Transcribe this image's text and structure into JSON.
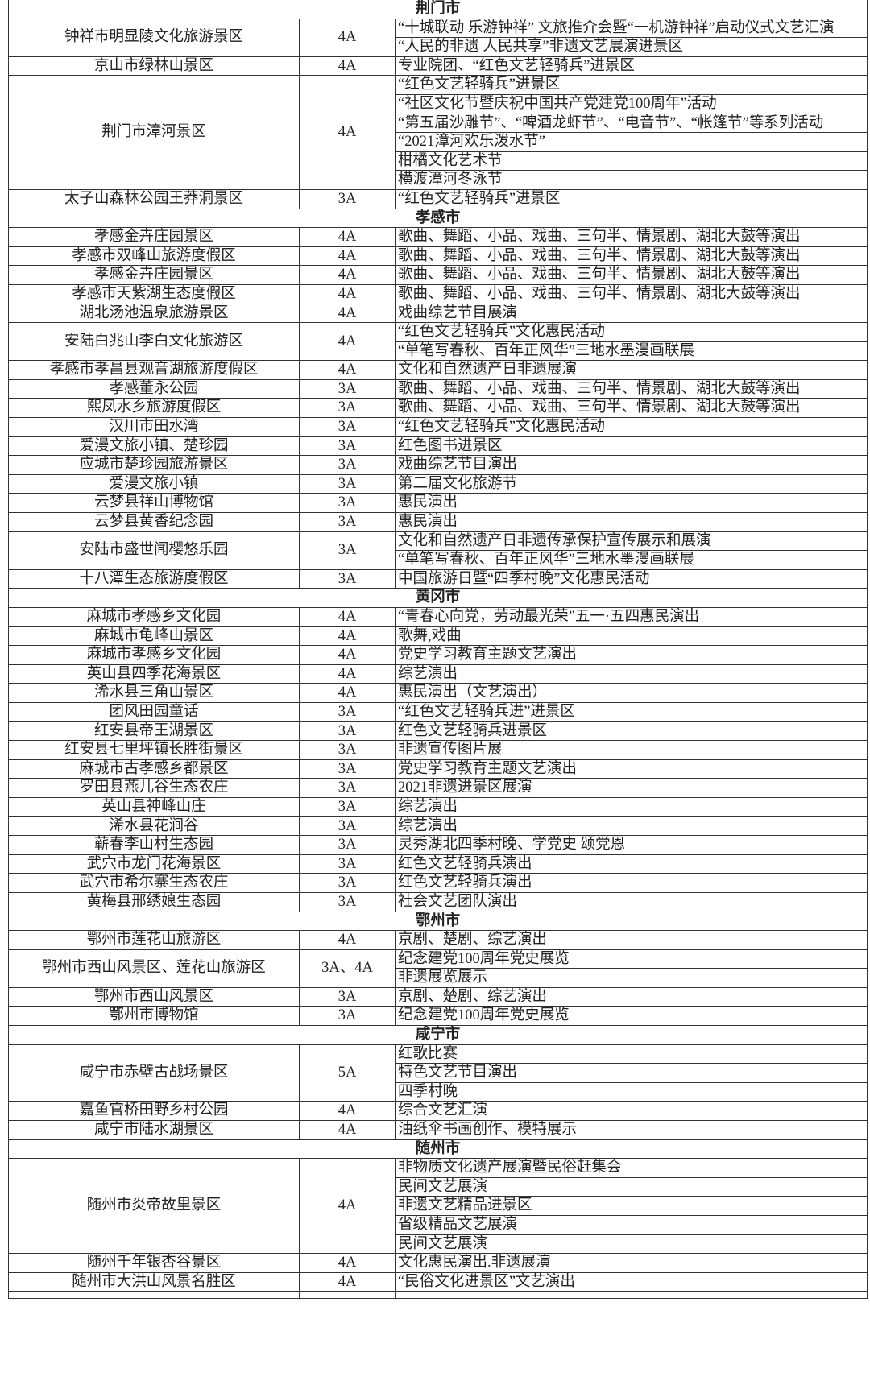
{
  "sections": [
    {
      "city": "荆门市",
      "rows": [
        {
          "name": "钟祥市明显陵文化旅游景区",
          "level": "4A",
          "activities": [
            "“十城联动 乐游钟祥” 文旅推介会暨“一机游钟祥”启动仪式文艺汇演",
            "“人民的非遗 人民共享”非遗文艺展演进景区"
          ]
        },
        {
          "name": "京山市绿林山景区",
          "level": "4A",
          "activities": [
            "专业院团、“红色文艺轻骑兵”进景区"
          ]
        },
        {
          "name": "荆门市漳河景区",
          "level": "4A",
          "activities": [
            "“红色文艺轻骑兵”进景区",
            "“社区文化节暨庆祝中国共产党建党100周年”活动",
            "“第五届沙雕节”、“啤酒龙虾节”、“电音节”、“帐篷节”等系列活动",
            "“2021漳河欢乐泼水节”",
            "柑橘文化艺术节",
            "横渡漳河冬泳节"
          ]
        },
        {
          "name": "太子山森林公园王莽洞景区",
          "level": "3A",
          "activities": [
            "“红色文艺轻骑兵”进景区"
          ]
        }
      ]
    },
    {
      "city": "孝感市",
      "rows": [
        {
          "name": "孝感金卉庄园景区",
          "level": "4A",
          "activities": [
            "歌曲、舞蹈、小品、戏曲、三句半、情景剧、湖北大鼓等演出"
          ]
        },
        {
          "name": "孝感市双峰山旅游度假区",
          "level": "4A",
          "activities": [
            "歌曲、舞蹈、小品、戏曲、三句半、情景剧、湖北大鼓等演出"
          ]
        },
        {
          "name": "孝感金卉庄园景区",
          "level": "4A",
          "activities": [
            "歌曲、舞蹈、小品、戏曲、三句半、情景剧、湖北大鼓等演出"
          ]
        },
        {
          "name": "孝感市天紫湖生态度假区",
          "level": "4A",
          "activities": [
            "歌曲、舞蹈、小品、戏曲、三句半、情景剧、湖北大鼓等演出"
          ]
        },
        {
          "name": "湖北汤池温泉旅游景区",
          "level": "4A",
          "activities": [
            "戏曲综艺节目展演"
          ]
        },
        {
          "name": "安陆白兆山李白文化旅游区",
          "level": "4A",
          "activities": [
            "“红色文艺轻骑兵”文化惠民活动",
            "“单笔写春秋、百年正风华”三地水墨漫画联展"
          ]
        },
        {
          "name": "孝感市孝昌县观音湖旅游度假区",
          "level": "4A",
          "activities": [
            "文化和自然遗产日非遗展演"
          ]
        },
        {
          "name": "孝感董永公园",
          "level": "3A",
          "activities": [
            "歌曲、舞蹈、小品、戏曲、三句半、情景剧、湖北大鼓等演出"
          ]
        },
        {
          "name": "熙凤水乡旅游度假区",
          "level": "3A",
          "activities": [
            "歌曲、舞蹈、小品、戏曲、三句半、情景剧、湖北大鼓等演出"
          ]
        },
        {
          "name": "汉川市田水湾",
          "level": "3A",
          "activities": [
            "“红色文艺轻骑兵”文化惠民活动"
          ]
        },
        {
          "name": "爱漫文旅小镇、楚珍园",
          "level": "3A",
          "activities": [
            "红色图书进景区"
          ]
        },
        {
          "name": "应城市楚珍园旅游景区",
          "level": "3A",
          "activities": [
            "戏曲综艺节目演出"
          ]
        },
        {
          "name": "爱漫文旅小镇",
          "level": "3A",
          "activities": [
            "第二届文化旅游节"
          ]
        },
        {
          "name": "云梦县祥山博物馆",
          "level": "3A",
          "activities": [
            "惠民演出"
          ]
        },
        {
          "name": "云梦县黄香纪念园",
          "level": "3A",
          "activities": [
            "惠民演出"
          ]
        },
        {
          "name": "安陆市盛世闻樱悠乐园",
          "level": "3A",
          "activities": [
            "文化和自然遗产日非遗传承保护宣传展示和展演",
            "“单笔写春秋、百年正风华”三地水墨漫画联展"
          ]
        },
        {
          "name": "十八潭生态旅游度假区",
          "level": "3A",
          "activities": [
            "中国旅游日暨“四季村晚”文化惠民活动"
          ]
        }
      ]
    },
    {
      "city": "黄冈市",
      "rows": [
        {
          "name": "麻城市孝感乡文化园",
          "level": "4A",
          "activities": [
            "“青春心向党，劳动最光荣”五一·五四惠民演出"
          ]
        },
        {
          "name": "麻城市龟峰山景区",
          "level": "4A",
          "activities": [
            "歌舞,戏曲"
          ]
        },
        {
          "name": "麻城市孝感乡文化园",
          "level": "4A",
          "activities": [
            "党史学习教育主题文艺演出"
          ]
        },
        {
          "name": "英山县四季花海景区",
          "level": "4A",
          "activities": [
            "综艺演出"
          ]
        },
        {
          "name": "浠水县三角山景区",
          "level": "4A",
          "activities": [
            "惠民演出（文艺演出）"
          ]
        },
        {
          "name": "团风田园童话",
          "level": "3A",
          "activities": [
            "“红色文艺轻骑兵进”进景区"
          ]
        },
        {
          "name": "红安县帝王湖景区",
          "level": "3A",
          "activities": [
            "红色文艺轻骑兵进景区"
          ]
        },
        {
          "name": "红安县七里坪镇长胜街景区",
          "level": "3A",
          "activities": [
            "非遗宣传图片展"
          ]
        },
        {
          "name": "麻城市古孝感乡都景区",
          "level": "3A",
          "activities": [
            "党史学习教育主题文艺演出"
          ]
        },
        {
          "name": "罗田县燕儿谷生态农庄",
          "level": "3A",
          "activities": [
            "2021非遗进景区展演"
          ]
        },
        {
          "name": "英山县神峰山庄",
          "level": "3A",
          "activities": [
            "综艺演出"
          ]
        },
        {
          "name": "浠水县花涧谷",
          "level": "3A",
          "activities": [
            "综艺演出"
          ]
        },
        {
          "name": "蕲春李山村生态园",
          "level": "3A",
          "activities": [
            "灵秀湖北四季村晚、学党史 颂党恩"
          ]
        },
        {
          "name": "武穴市龙门花海景区",
          "level": "3A",
          "activities": [
            "红色文艺轻骑兵演出"
          ]
        },
        {
          "name": "武穴市希尔寨生态农庄",
          "level": "3A",
          "activities": [
            "红色文艺轻骑兵演出"
          ]
        },
        {
          "name": "黄梅县邢绣娘生态园",
          "level": "3A",
          "activities": [
            "社会文艺团队演出"
          ]
        }
      ]
    },
    {
      "city": "鄂州市",
      "rows": [
        {
          "name": "鄂州市莲花山旅游区",
          "level": "4A",
          "activities": [
            "京剧、楚剧、综艺演出"
          ]
        },
        {
          "name": "鄂州市西山风景区、莲花山旅游区",
          "level": "3A、4A",
          "activities": [
            "纪念建党100周年党史展览",
            "非遗展览展示"
          ]
        },
        {
          "name": "鄂州市西山风景区",
          "level": "3A",
          "activities": [
            "京剧、楚剧、综艺演出"
          ]
        },
        {
          "name": "鄂州市博物馆",
          "level": "3A",
          "activities": [
            "纪念建党100周年党史展览"
          ]
        }
      ]
    },
    {
      "city": "咸宁市",
      "rows": [
        {
          "name": "咸宁市赤壁古战场景区",
          "level": "5A",
          "activities": [
            "红歌比赛",
            "特色文艺节目演出",
            "四季村晚"
          ]
        },
        {
          "name": "嘉鱼官桥田野乡村公园",
          "level": "4A",
          "activities": [
            "综合文艺汇演"
          ]
        },
        {
          "name": "咸宁市陆水湖景区",
          "level": "4A",
          "activities": [
            "油纸伞书画创作、模特展示"
          ]
        }
      ]
    },
    {
      "city": "随州市",
      "rows": [
        {
          "name": "随州市炎帝故里景区",
          "level": "4A",
          "activities": [
            "非物质文化遗产展演暨民俗赶集会",
            "民间文艺展演",
            "非遗文艺精品进景区",
            "省级精品文艺展演",
            "民间文艺展演"
          ]
        },
        {
          "name": "随州千年银杏谷景区",
          "level": "4A",
          "activities": [
            "文化惠民演出.非遗展演"
          ]
        },
        {
          "name": "随州市大洪山风景名胜区",
          "level": "4A",
          "activities": [
            "“民俗文化进景区”文艺演出"
          ]
        }
      ]
    }
  ]
}
